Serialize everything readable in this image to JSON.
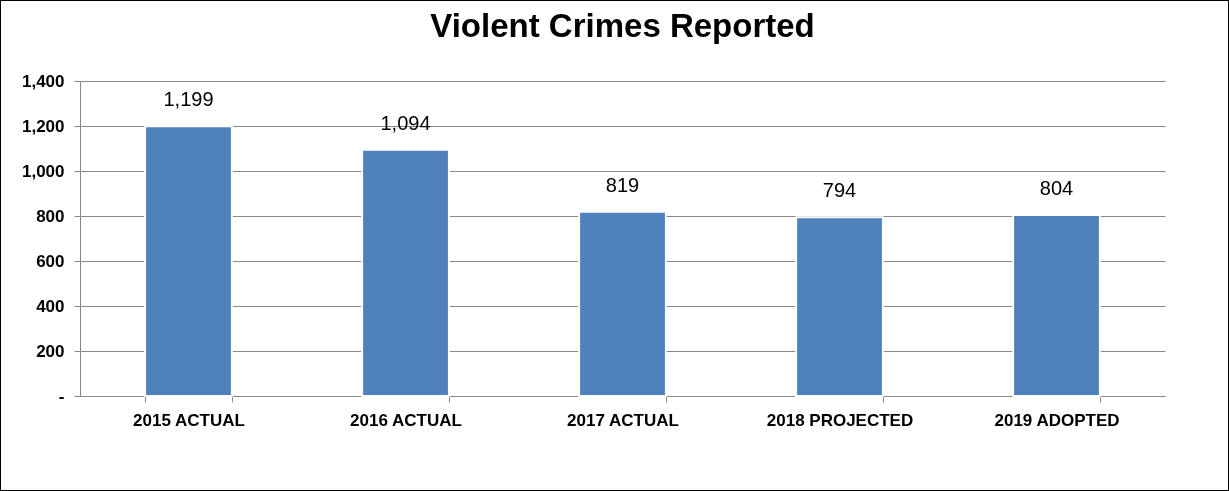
{
  "chart_data": {
    "type": "bar",
    "title": "Violent Crimes Reported",
    "categories": [
      "2015 ACTUAL",
      "2016 ACTUAL",
      "2017 ACTUAL",
      "2018 PROJECTED",
      "2019 ADOPTED"
    ],
    "values": [
      1199,
      1094,
      819,
      794,
      804
    ],
    "value_labels": [
      "1,199",
      "1,094",
      "819",
      "794",
      "804"
    ],
    "color": "#4f81bd",
    "ylim": [
      0,
      1400
    ],
    "yticks": [
      {
        "value": 0,
        "label": "-"
      },
      {
        "value": 200,
        "label": "200"
      },
      {
        "value": 400,
        "label": "400"
      },
      {
        "value": 600,
        "label": "600"
      },
      {
        "value": 800,
        "label": "800"
      },
      {
        "value": 1000,
        "label": "1,000"
      },
      {
        "value": 1200,
        "label": "1,200"
      },
      {
        "value": 1400,
        "label": "1,400"
      }
    ],
    "grid": "y"
  }
}
